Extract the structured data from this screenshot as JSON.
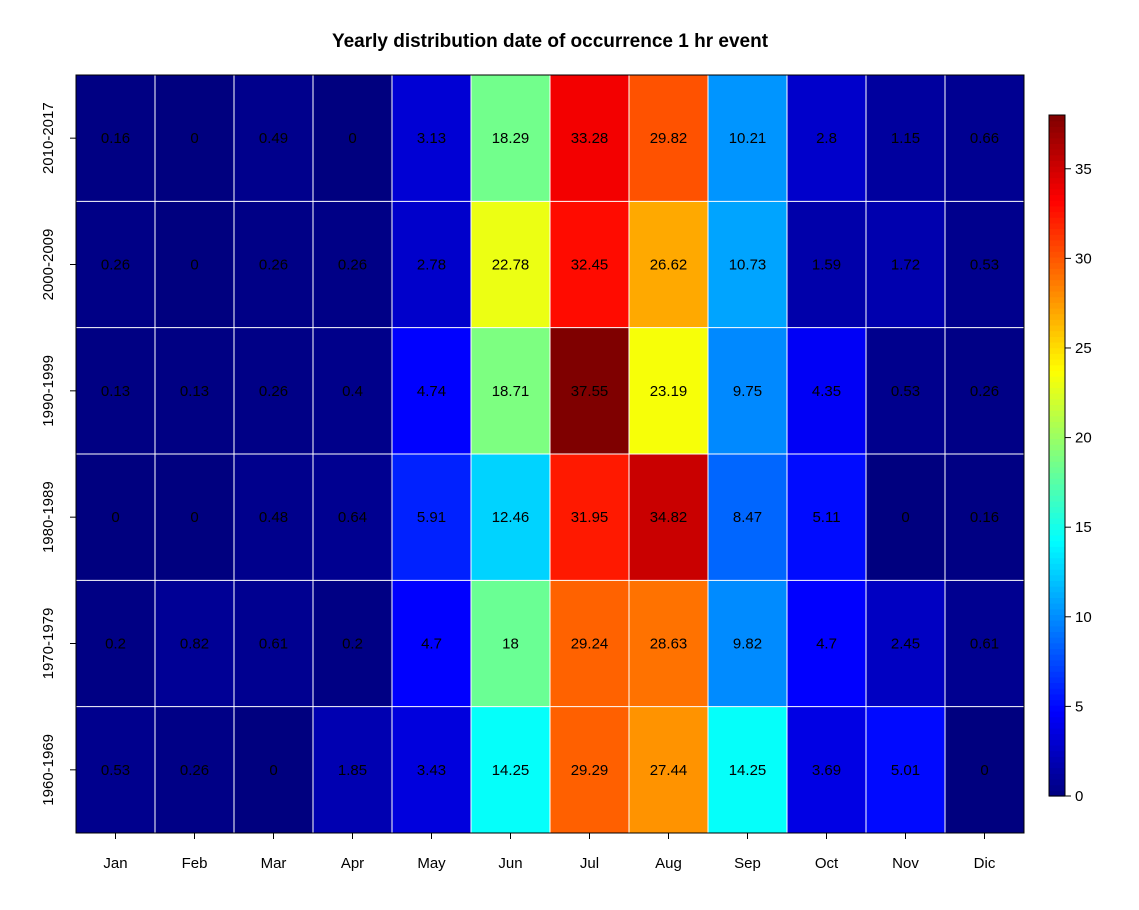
{
  "chart_data": {
    "type": "heatmap",
    "title": "Yearly distribution date of occurrence 1 hr event",
    "xlabel": "",
    "ylabel": "",
    "x_categories": [
      "Jan",
      "Feb",
      "Mar",
      "Apr",
      "May",
      "Jun",
      "Jul",
      "Aug",
      "Sep",
      "Oct",
      "Nov",
      "Dic"
    ],
    "y_categories_top_to_bottom": [
      "2010-2017",
      "2000-2009",
      "1990-1999",
      "1980-1989",
      "1970-1979",
      "1960-1969"
    ],
    "values": [
      [
        0.16,
        0,
        0.49,
        0,
        3.13,
        18.29,
        33.28,
        29.82,
        10.21,
        2.8,
        1.15,
        0.66
      ],
      [
        0.26,
        0,
        0.26,
        0.26,
        2.78,
        22.78,
        32.45,
        26.62,
        10.73,
        1.59,
        1.72,
        0.53
      ],
      [
        0.13,
        0.13,
        0.26,
        0.4,
        4.74,
        18.71,
        37.55,
        23.19,
        9.75,
        4.35,
        0.53,
        0.26
      ],
      [
        0,
        0,
        0.48,
        0.64,
        5.91,
        12.46,
        31.95,
        34.82,
        8.47,
        5.11,
        0,
        0.16
      ],
      [
        0.2,
        0.82,
        0.61,
        0.2,
        4.7,
        18,
        29.24,
        28.63,
        9.82,
        4.7,
        2.45,
        0.61
      ],
      [
        0.53,
        0.26,
        0,
        1.85,
        3.43,
        14.25,
        29.29,
        27.44,
        14.25,
        3.69,
        5.01,
        0
      ]
    ],
    "colorbar": {
      "ticks": [
        0,
        5,
        10,
        15,
        20,
        25,
        30,
        35
      ],
      "range": [
        0,
        37.55
      ],
      "palette": "jet",
      "palette_stops": [
        "#00007F",
        "#0000FF",
        "#007FFF",
        "#00FFFF",
        "#7FFF7F",
        "#FFFF00",
        "#FF7F00",
        "#FF0000",
        "#7F0000"
      ]
    },
    "grid_lines_color": "#ffffff"
  }
}
